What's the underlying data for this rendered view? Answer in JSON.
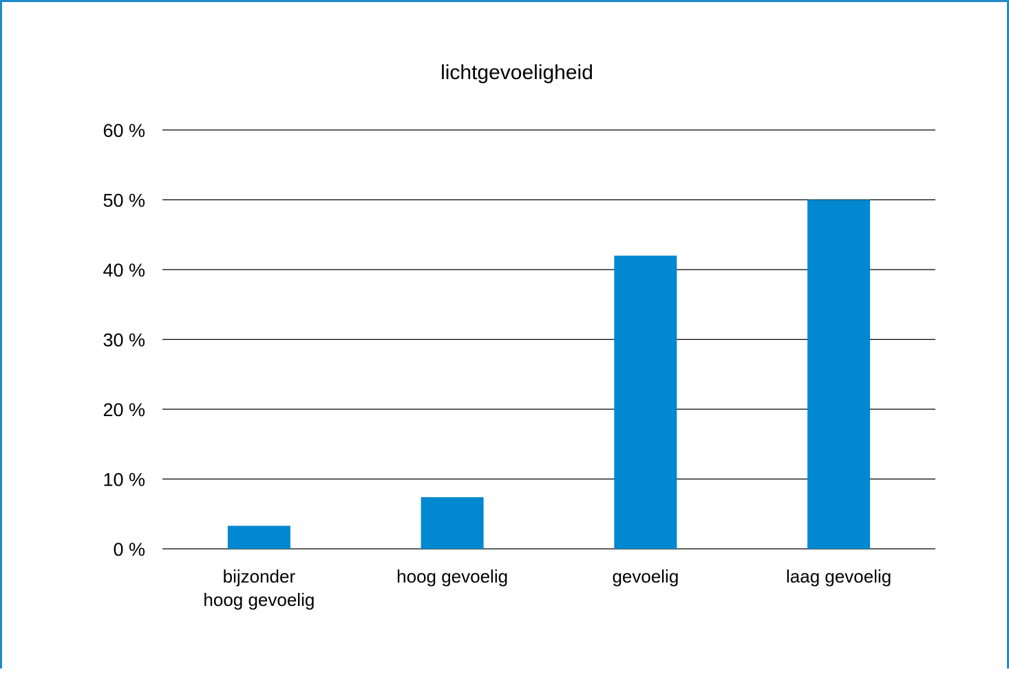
{
  "colors": {
    "frame": "#1f8ac8",
    "bar": "#0088d1",
    "grid": "#000000",
    "text": "#000000"
  },
  "chart_data": {
    "type": "bar",
    "title": "lichtgevoeligheid",
    "xlabel": "",
    "ylabel": "",
    "categories": [
      "bijzonder\nhoog gevoelig",
      "hoog gevoelig",
      "gevoelig",
      "laag gevoelig"
    ],
    "values": [
      3.3,
      7.4,
      42,
      50
    ],
    "ylim": [
      0,
      60
    ],
    "yticks": [
      0,
      10,
      20,
      30,
      40,
      50,
      60
    ],
    "ytick_labels": [
      "0 %",
      "10 %",
      "20 %",
      "30 %",
      "40 %",
      "50 %",
      "60 %"
    ],
    "grid": true,
    "legend": "none"
  }
}
